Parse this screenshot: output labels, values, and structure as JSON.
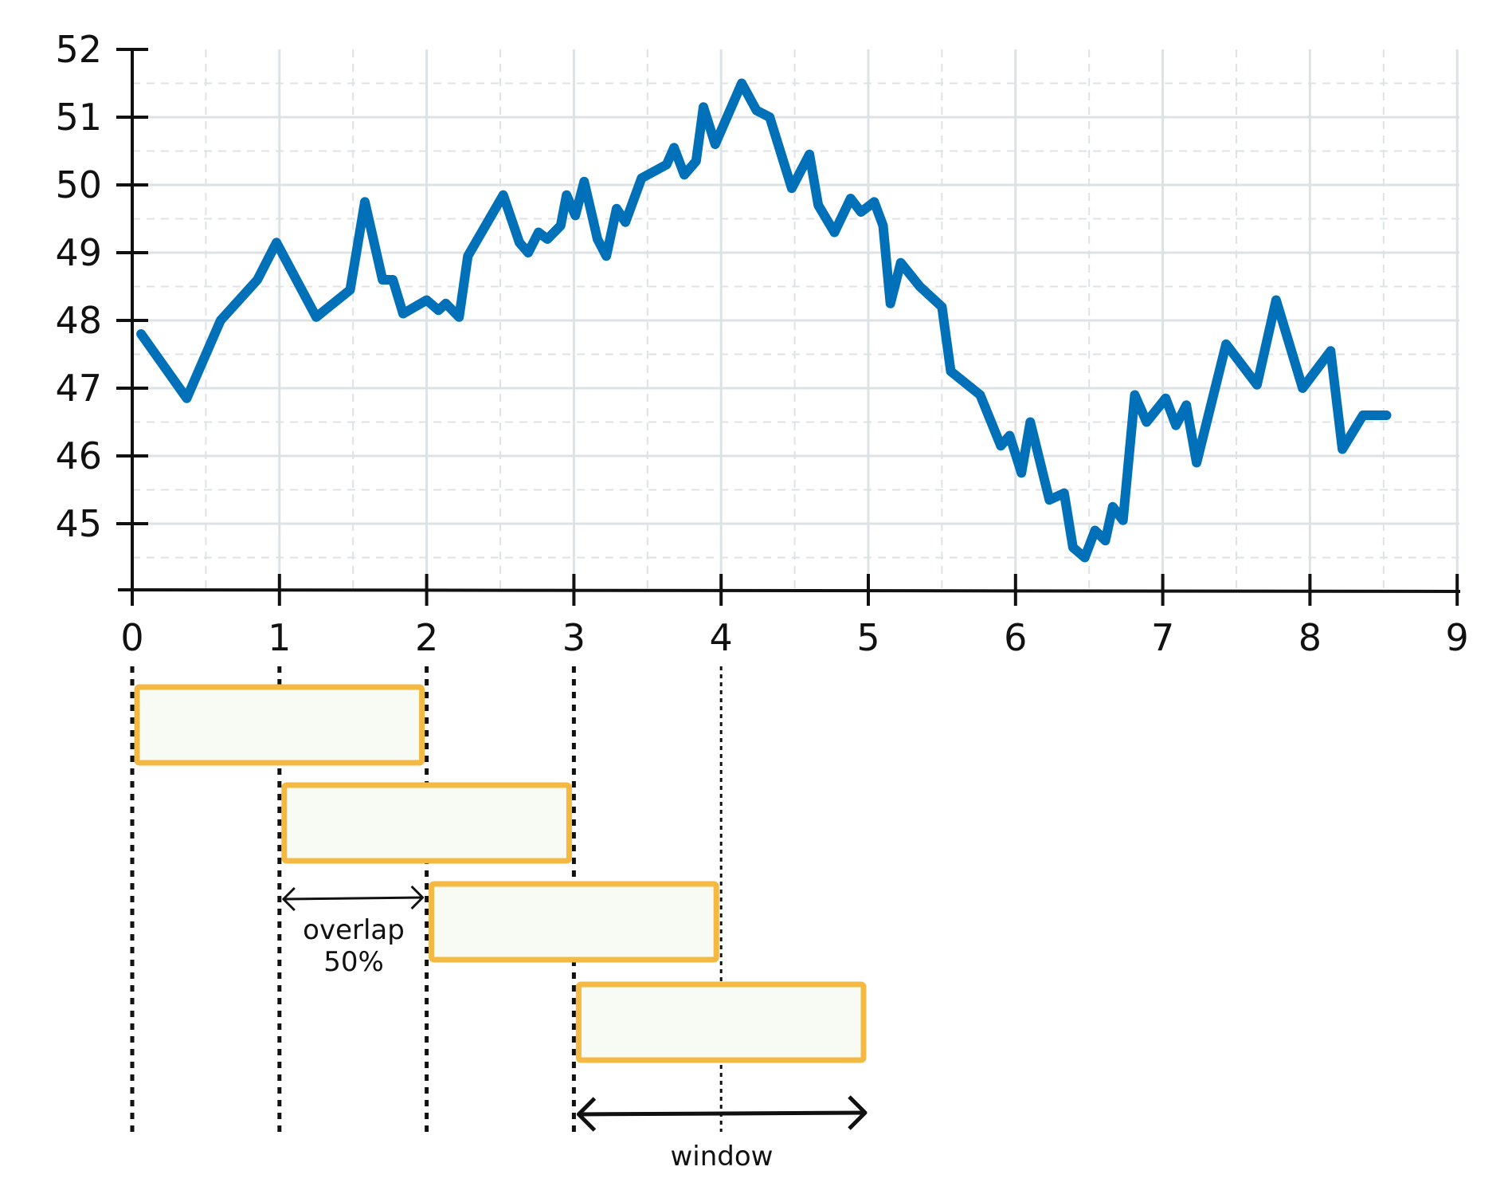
{
  "chart_data": {
    "type": "line",
    "title": "",
    "xlabel": "",
    "ylabel": "",
    "xlim": [
      0,
      9
    ],
    "ylim": [
      44.2,
      52
    ],
    "grid": true,
    "x_ticks": [
      0,
      1,
      2,
      3,
      4,
      5,
      6,
      7,
      8,
      9
    ],
    "y_ticks": [
      45,
      46,
      47,
      48,
      49,
      50,
      51,
      52
    ],
    "series": [
      {
        "color": "#0070b8",
        "x": [
          0.06,
          0.37,
          0.6,
          0.85,
          0.98,
          1.25,
          1.48,
          1.58,
          1.7,
          1.77,
          1.84,
          2.0,
          2.08,
          2.13,
          2.22,
          2.28,
          2.52,
          2.63,
          2.69,
          2.76,
          2.82,
          2.91,
          2.95,
          3.01,
          3.07,
          3.16,
          3.22,
          3.29,
          3.35,
          3.46,
          3.63,
          3.68,
          3.75,
          3.83,
          3.88,
          3.96,
          4.14,
          4.24,
          4.33,
          4.48,
          4.6,
          4.66,
          4.77,
          4.88,
          4.95,
          5.04,
          5.1,
          5.15,
          5.22,
          5.35,
          5.5,
          5.56,
          5.76,
          5.9,
          5.96,
          6.04,
          6.1,
          6.23,
          6.33,
          6.39,
          6.47,
          6.54,
          6.61,
          6.66,
          6.73,
          6.81,
          6.89,
          7.02,
          7.09,
          7.16,
          7.23,
          7.43,
          7.64,
          7.77,
          7.95,
          8.14,
          8.22,
          8.36,
          8.52
        ],
        "y": [
          47.8,
          46.85,
          48.0,
          48.6,
          49.15,
          48.05,
          48.45,
          49.75,
          48.6,
          48.6,
          48.1,
          48.3,
          48.15,
          48.25,
          48.05,
          48.95,
          49.85,
          49.15,
          49.0,
          49.3,
          49.2,
          49.4,
          49.85,
          49.55,
          50.05,
          49.2,
          48.95,
          49.65,
          49.45,
          50.1,
          50.3,
          50.55,
          50.15,
          50.35,
          51.15,
          50.6,
          51.5,
          51.1,
          51.0,
          49.95,
          50.45,
          49.7,
          49.3,
          49.8,
          49.6,
          49.75,
          49.4,
          48.25,
          48.85,
          48.5,
          48.2,
          47.25,
          46.9,
          46.15,
          46.3,
          45.75,
          46.5,
          45.35,
          45.45,
          44.65,
          44.5,
          44.9,
          44.75,
          45.25,
          45.05,
          46.9,
          46.5,
          46.85,
          46.45,
          46.75,
          45.9,
          47.65,
          47.05,
          48.3,
          47.0,
          47.55,
          46.1,
          46.6,
          46.6
        ]
      }
    ],
    "annotations": {
      "windows": [
        {
          "start": 0,
          "end": 2
        },
        {
          "start": 1,
          "end": 3
        },
        {
          "start": 2,
          "end": 4
        },
        {
          "start": 3,
          "end": 5
        }
      ],
      "window_fill": "#f8fbf3",
      "window_stroke": "#f4b942",
      "overlap_label_line1": "overlap",
      "overlap_label_line2": "50%",
      "window_label": "window"
    }
  }
}
